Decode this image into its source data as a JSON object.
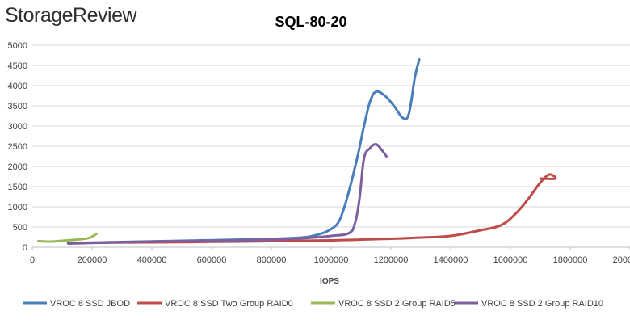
{
  "brand": {
    "logo_text": "StorageReview"
  },
  "chart_data": {
    "type": "line",
    "title": "SQL-80-20",
    "xlabel": "IOPS",
    "ylabel": "",
    "xlim": [
      0,
      2000000
    ],
    "ylim": [
      0,
      5000
    ],
    "x_ticks": [
      0,
      200000,
      400000,
      600000,
      800000,
      1000000,
      1200000,
      1400000,
      1600000,
      1800000,
      2000000
    ],
    "y_ticks": [
      0,
      500,
      1000,
      1500,
      2000,
      2500,
      3000,
      3500,
      4000,
      4500,
      5000
    ],
    "grid": "horizontal",
    "legend_position": "bottom",
    "series": [
      {
        "name": "VROC 8 SSD JBOD",
        "color": "#4a7ebb",
        "points": [
          [
            120000,
            100
          ],
          [
            300000,
            130
          ],
          [
            500000,
            160
          ],
          [
            700000,
            190
          ],
          [
            880000,
            230
          ],
          [
            950000,
            300
          ],
          [
            1000000,
            450
          ],
          [
            1030000,
            700
          ],
          [
            1060000,
            1400
          ],
          [
            1090000,
            2300
          ],
          [
            1110000,
            3000
          ],
          [
            1130000,
            3600
          ],
          [
            1150000,
            3850
          ],
          [
            1180000,
            3750
          ],
          [
            1210000,
            3500
          ],
          [
            1240000,
            3200
          ],
          [
            1260000,
            3300
          ],
          [
            1280000,
            4200
          ],
          [
            1295000,
            4650
          ]
        ]
      },
      {
        "name": "VROC 8 SSD Two Group RAID0",
        "color": "#be4b48",
        "points": [
          [
            120000,
            110
          ],
          [
            400000,
            120
          ],
          [
            700000,
            140
          ],
          [
            1000000,
            170
          ],
          [
            1200000,
            210
          ],
          [
            1300000,
            240
          ],
          [
            1400000,
            280
          ],
          [
            1500000,
            420
          ],
          [
            1570000,
            550
          ],
          [
            1620000,
            850
          ],
          [
            1660000,
            1200
          ],
          [
            1700000,
            1600
          ],
          [
            1730000,
            1800
          ],
          [
            1750000,
            1700
          ],
          [
            1700000,
            1700
          ]
        ]
      },
      {
        "name": "VROC 8 SSD 2 Group RAID5",
        "color": "#98b954",
        "points": [
          [
            20000,
            150
          ],
          [
            60000,
            140
          ],
          [
            100000,
            160
          ],
          [
            150000,
            190
          ],
          [
            190000,
            230
          ],
          [
            215000,
            330
          ]
        ]
      },
      {
        "name": "VROC 8 SSD 2 Group RAID10",
        "color": "#7d5fa0",
        "points": [
          [
            120000,
            90
          ],
          [
            400000,
            140
          ],
          [
            700000,
            170
          ],
          [
            900000,
            220
          ],
          [
            1000000,
            280
          ],
          [
            1060000,
            350
          ],
          [
            1080000,
            600
          ],
          [
            1095000,
            1200
          ],
          [
            1110000,
            2200
          ],
          [
            1130000,
            2450
          ],
          [
            1150000,
            2550
          ],
          [
            1170000,
            2400
          ],
          [
            1185000,
            2250
          ]
        ]
      }
    ]
  }
}
